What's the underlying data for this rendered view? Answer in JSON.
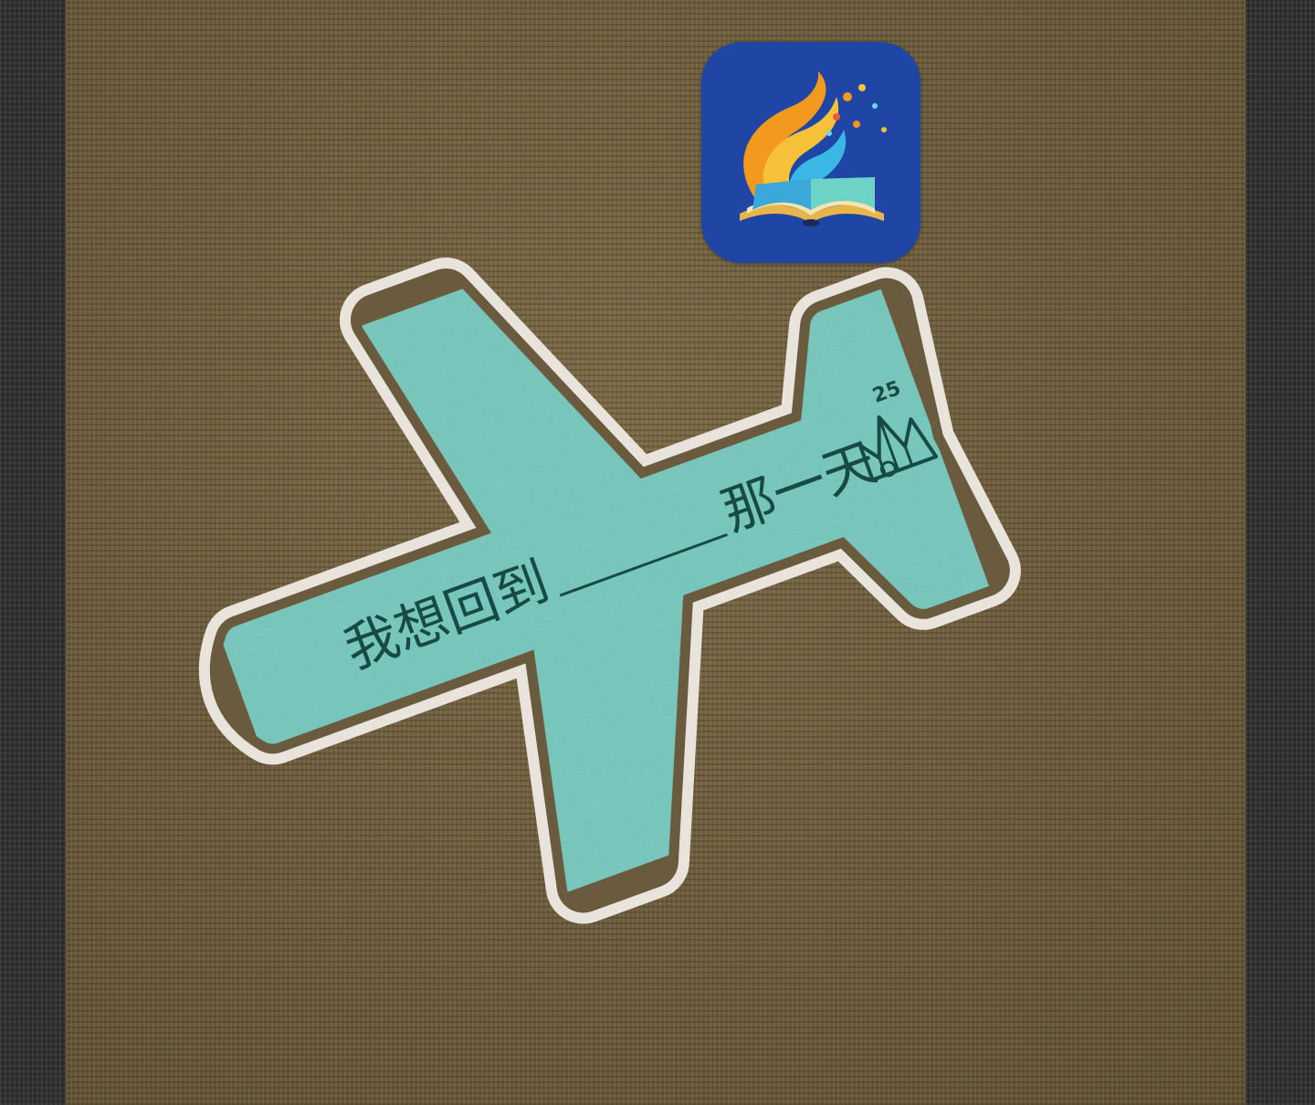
{
  "card": {
    "text_before_blank": "我想回到",
    "text_after_blank": "那一天。",
    "badge_number": "25",
    "colors": {
      "card": "#54bdb0",
      "outline": "#e8e4dc",
      "ink": "#174a44",
      "fabric": "#6a5b3e"
    }
  },
  "app_icon": {
    "icon": "book-logo-icon",
    "background": "#1f46a4"
  }
}
